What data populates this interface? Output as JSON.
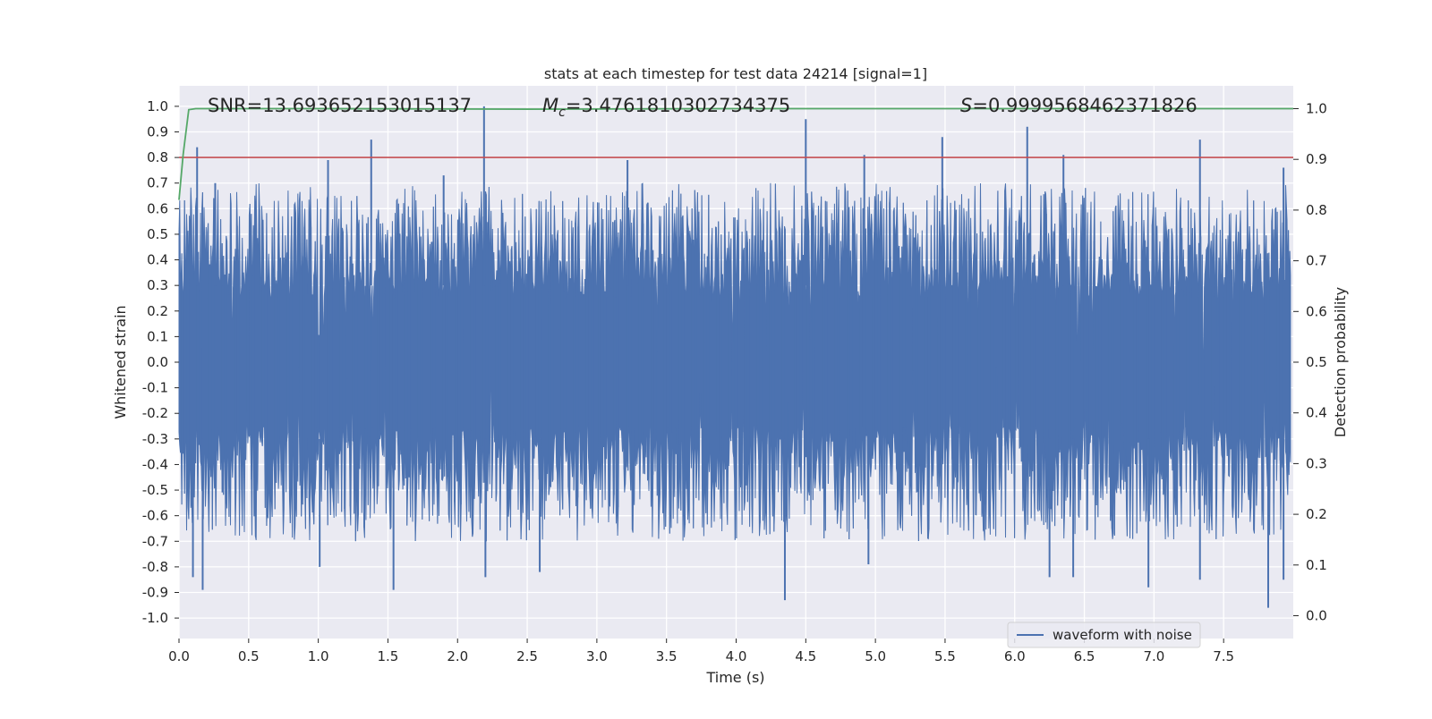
{
  "chart_data": {
    "type": "line",
    "title": "stats at each timestep for test data 24214 [signal=1]",
    "xlabel": "Time (s)",
    "ylabel": "Whitened strain",
    "ylabel_right": "Detection probability",
    "xlim": [
      0.0,
      8.0
    ],
    "ylim": [
      -1.08,
      1.08
    ],
    "ylim_right": [
      -0.045,
      1.045
    ],
    "x_ticks": [
      0.0,
      0.5,
      1.0,
      1.5,
      2.0,
      2.5,
      3.0,
      3.5,
      4.0,
      4.5,
      5.0,
      5.5,
      6.0,
      6.5,
      7.0,
      7.5
    ],
    "x_tick_labels": [
      "0.0",
      "0.5",
      "1.0",
      "1.5",
      "2.0",
      "2.5",
      "3.0",
      "3.5",
      "4.0",
      "4.5",
      "5.0",
      "5.5",
      "6.0",
      "6.5",
      "7.0",
      "7.5"
    ],
    "y_ticks": [
      1.0,
      0.9,
      0.8,
      0.7,
      0.6,
      0.5,
      0.4,
      0.3,
      0.2,
      0.1,
      0.0,
      -0.1,
      -0.2,
      -0.3,
      -0.4,
      -0.5,
      -0.6,
      -0.7,
      -0.8,
      -0.9,
      -1.0
    ],
    "y_tick_labels": [
      "1.0",
      "0.9",
      "0.8",
      "0.7",
      "0.6",
      "0.5",
      "0.4",
      "0.3",
      "0.2",
      "0.1",
      "0.0",
      "-0.1",
      "-0.2",
      "-0.3",
      "-0.4",
      "-0.5",
      "-0.6",
      "-0.7",
      "-0.8",
      "-0.9",
      "-1.0"
    ],
    "y_right_ticks": [
      1.0,
      0.9,
      0.8,
      0.7,
      0.6,
      0.5,
      0.4,
      0.3,
      0.2,
      0.1,
      0.0
    ],
    "y_right_tick_labels": [
      "1.0",
      "0.9",
      "0.8",
      "0.7",
      "0.6",
      "0.5",
      "0.4",
      "0.3",
      "0.2",
      "0.1",
      "0.0"
    ],
    "grid": true,
    "legend_position": "lower-right",
    "annotations": {
      "snr": "SNR=13.693652153015137",
      "mc_symbol": "M",
      "mc_sub": "c",
      "mc_value": "=3.4761810302734375",
      "s_symbol": "S",
      "s_value": "=0.9999568462371826"
    },
    "series": [
      {
        "name": "waveform with noise",
        "axis": "left",
        "color": "#4c72b0",
        "envelope_samples": 1600,
        "envelope_upper_range": [
          0.25,
          0.7
        ],
        "envelope_lower_range": [
          -0.7,
          -0.25
        ],
        "peak_points": [
          [
            0.13,
            0.84
          ],
          [
            0.26,
            0.7
          ],
          [
            1.07,
            0.79
          ],
          [
            1.38,
            0.87
          ],
          [
            1.9,
            0.73
          ],
          [
            2.19,
            1.0
          ],
          [
            3.22,
            0.79
          ],
          [
            4.5,
            0.95
          ],
          [
            4.92,
            0.81
          ],
          [
            5.48,
            0.88
          ],
          [
            6.09,
            0.92
          ],
          [
            6.35,
            0.81
          ],
          [
            7.33,
            0.87
          ],
          [
            7.93,
            0.76
          ]
        ],
        "trough_points": [
          [
            0.1,
            -0.84
          ],
          [
            0.17,
            -0.89
          ],
          [
            1.01,
            -0.8
          ],
          [
            1.54,
            -0.89
          ],
          [
            2.2,
            -0.84
          ],
          [
            2.59,
            -0.82
          ],
          [
            4.35,
            -0.93
          ],
          [
            4.95,
            -0.79
          ],
          [
            6.25,
            -0.84
          ],
          [
            6.42,
            -0.84
          ],
          [
            6.96,
            -0.88
          ],
          [
            7.33,
            -0.85
          ],
          [
            7.82,
            -0.96
          ],
          [
            7.93,
            -0.85
          ]
        ]
      },
      {
        "axis": "right",
        "color": "#55a868",
        "x": [
          0.0,
          0.03,
          0.07,
          0.12,
          1.0,
          2.5,
          4.0,
          6.0,
          8.0
        ],
        "values": [
          0.82,
          0.91,
          0.998,
          1.0,
          1.0,
          0.999,
          1.0,
          1.0,
          1.0
        ]
      },
      {
        "axis": "left",
        "color": "#c44e52",
        "x": [
          0.0,
          8.0
        ],
        "values": [
          0.8,
          0.8
        ]
      }
    ]
  }
}
